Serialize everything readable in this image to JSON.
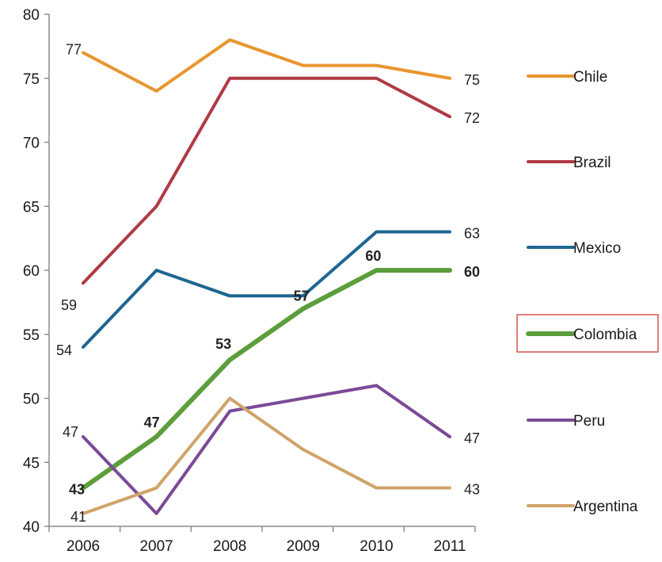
{
  "chart_data": {
    "type": "line",
    "categories": [
      "2006",
      "2007",
      "2008",
      "2009",
      "2010",
      "2011"
    ],
    "ylim": [
      40,
      80
    ],
    "yticks": [
      40,
      45,
      50,
      55,
      60,
      65,
      70,
      75,
      80
    ],
    "grid": false,
    "legend_position": "right",
    "highlighted_series": "Colombia",
    "series": [
      {
        "name": "Chile",
        "color": "#E8962E",
        "values": [
          77,
          74,
          78,
          76,
          76,
          75
        ],
        "labels": [
          {
            "index": 0,
            "text": "77"
          },
          {
            "index": 5,
            "text": "75"
          }
        ]
      },
      {
        "name": "Brazil",
        "color": "#B03A45",
        "values": [
          59,
          65,
          75,
          75,
          75,
          72
        ],
        "labels": [
          {
            "index": 0,
            "text": "59"
          },
          {
            "index": 5,
            "text": "72"
          }
        ]
      },
      {
        "name": "Mexico",
        "color": "#1E6591",
        "values": [
          54,
          60,
          58,
          58,
          63,
          63
        ],
        "labels": [
          {
            "index": 0,
            "text": "54"
          },
          {
            "index": 5,
            "text": "63"
          }
        ]
      },
      {
        "name": "Colombia",
        "color": "#5C9E3C",
        "values": [
          43,
          47,
          53,
          57,
          60,
          60
        ],
        "labels": [
          {
            "index": 0,
            "text": "43"
          },
          {
            "index": 1,
            "text": "47"
          },
          {
            "index": 2,
            "text": "53"
          },
          {
            "index": 3,
            "text": "57"
          },
          {
            "index": 4,
            "text": "60"
          },
          {
            "index": 5,
            "text": "60"
          }
        ]
      },
      {
        "name": "Peru",
        "color": "#7B4A97",
        "values": [
          47,
          41,
          49,
          50,
          51,
          47
        ],
        "labels": [
          {
            "index": 0,
            "text": "47"
          },
          {
            "index": 5,
            "text": "47"
          }
        ]
      },
      {
        "name": "Argentina",
        "color": "#CFA46A",
        "values": [
          41,
          43,
          50,
          46,
          43,
          43
        ],
        "labels": [
          {
            "index": 0,
            "text": "41"
          },
          {
            "index": 5,
            "text": "43"
          }
        ]
      }
    ]
  }
}
